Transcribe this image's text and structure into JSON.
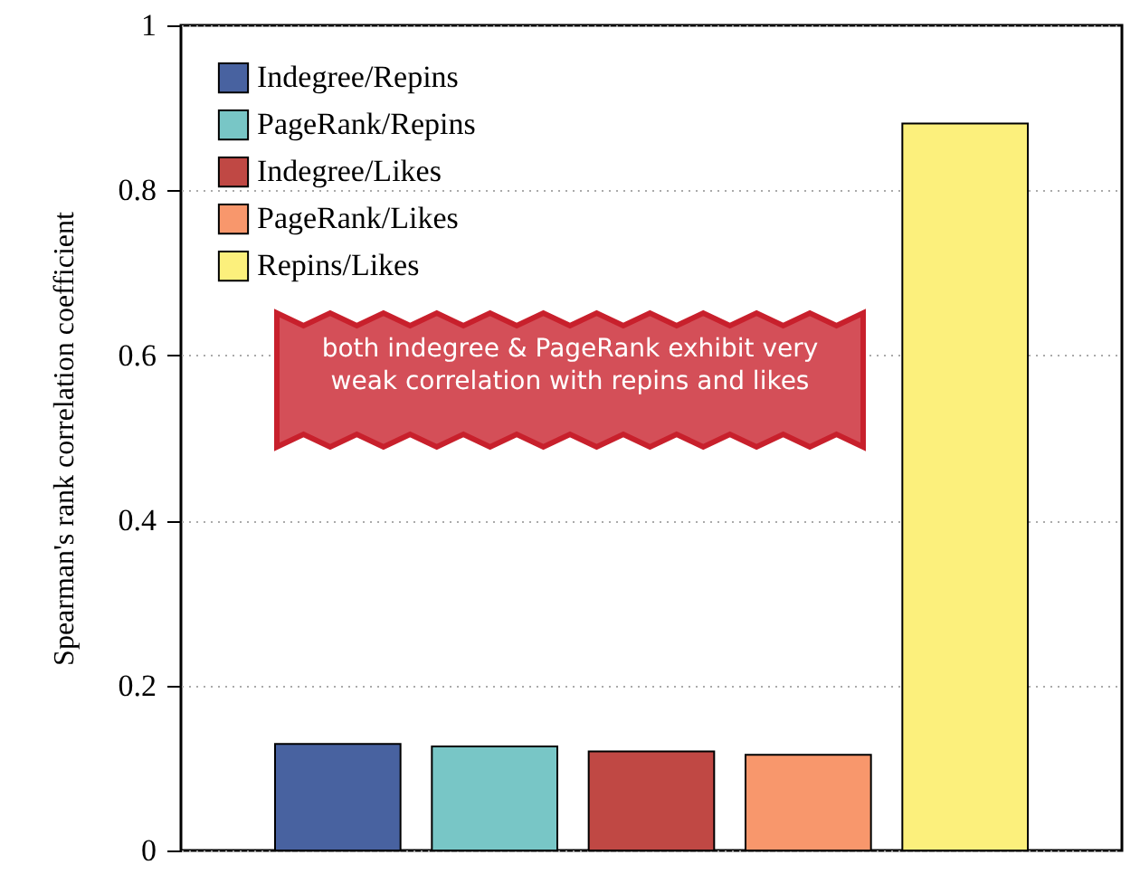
{
  "chart_data": {
    "type": "bar",
    "ylabel": "Spearman's rank correlation coefficient",
    "categories": [
      null
    ],
    "series": [
      {
        "name": "Indegree/Repins",
        "color": "#4862a0",
        "values": [
          0.129
        ]
      },
      {
        "name": "PageRank/Repins",
        "color": "#78c6c6",
        "values": [
          0.126
        ]
      },
      {
        "name": "Indegree/Likes",
        "color": "#c04844",
        "values": [
          0.12
        ]
      },
      {
        "name": "PageRank/Likes",
        "color": "#f8976c",
        "values": [
          0.116
        ]
      },
      {
        "name": "Repins/Likes",
        "color": "#fcf07c",
        "values": [
          0.881
        ]
      }
    ],
    "ylim": [
      0,
      1
    ],
    "yticks": [
      0,
      0.2,
      0.4,
      0.6,
      0.8,
      1
    ],
    "grid": "y",
    "legend": "top left",
    "annotations": [
      "both indegree & PageRank exhibit very weak correlation with repins and likes"
    ]
  }
}
